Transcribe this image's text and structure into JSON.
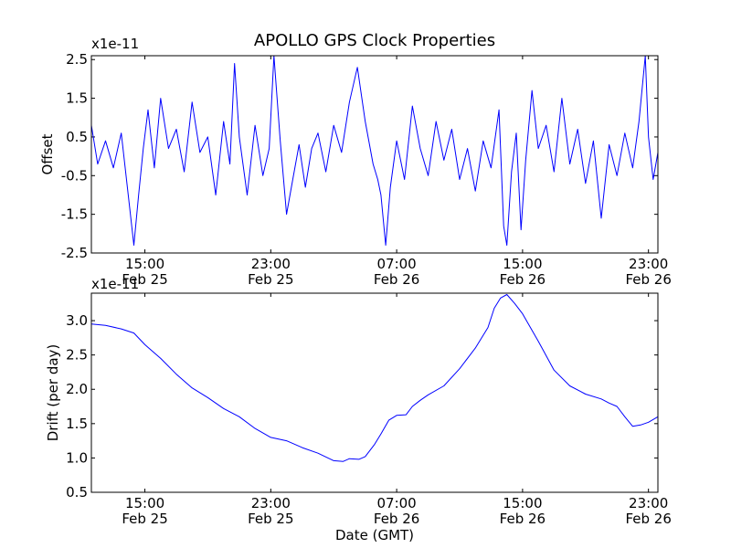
{
  "chart_data": [
    {
      "type": "line",
      "title": "APOLLO GPS Clock Properties",
      "xlabel": "",
      "ylabel": "Offset",
      "y_multiplier_label": "x1e-11",
      "ylim": [
        -2.5,
        2.6
      ],
      "yticks": [
        2.5,
        1.5,
        0.5,
        -0.5,
        -1.5,
        -2.5
      ],
      "ytick_labels": [
        "2.5",
        "1.5",
        "0.5",
        "-0.5",
        "-1.5",
        "-2.5"
      ],
      "xlim_hours": [
        11.6,
        47.6
      ],
      "xticks": [
        {
          "hour": 15,
          "time": "15:00",
          "date": "Feb 25"
        },
        {
          "hour": 23,
          "time": "23:00",
          "date": "Feb 25"
        },
        {
          "hour": 31,
          "time": "07:00",
          "date": "Feb 26"
        },
        {
          "hour": 39,
          "time": "15:00",
          "date": "Feb 26"
        },
        {
          "hour": 47,
          "time": "23:00",
          "date": "Feb 26"
        }
      ],
      "grid": false,
      "color": "#0000ff",
      "series": [
        {
          "x": [
            11.6,
            12.0,
            12.5,
            13.0,
            13.5,
            14.0,
            14.3,
            14.6,
            14.9,
            15.2,
            15.6,
            16.0,
            16.5,
            17.0,
            17.5,
            18.0,
            18.5,
            19.0,
            19.5,
            20.0,
            20.4,
            20.7,
            21.0,
            21.5,
            22.0,
            22.5,
            22.9,
            23.2,
            23.6,
            24.0,
            24.4,
            24.8,
            25.2,
            25.6,
            26.0,
            26.5,
            27.0,
            27.5,
            28.0,
            28.5,
            29.0,
            29.5,
            29.8,
            30.0,
            30.3,
            30.6,
            31.0,
            31.5,
            32.0,
            32.5,
            33.0,
            33.5,
            34.0,
            34.5,
            35.0,
            35.5,
            36.0,
            36.5,
            37.0,
            37.5,
            37.8,
            38.0,
            38.3,
            38.6,
            38.9,
            39.2,
            39.6,
            40.0,
            40.5,
            41.0,
            41.5,
            42.0,
            42.5,
            43.0,
            43.5,
            44.0,
            44.5,
            45.0,
            45.5,
            46.0,
            46.4,
            46.8,
            47.0,
            47.3,
            47.6
          ],
          "y": [
            0.8,
            -0.2,
            0.4,
            -0.3,
            0.6,
            -1.2,
            -2.3,
            -1.0,
            0.2,
            1.2,
            -0.3,
            1.5,
            0.2,
            0.7,
            -0.4,
            1.4,
            0.1,
            0.5,
            -1.0,
            0.9,
            -0.2,
            2.4,
            0.5,
            -1.0,
            0.8,
            -0.5,
            0.2,
            2.6,
            0.4,
            -1.5,
            -0.6,
            0.3,
            -0.8,
            0.2,
            0.6,
            -0.4,
            0.8,
            0.1,
            1.4,
            2.3,
            0.9,
            -0.2,
            -0.6,
            -1.0,
            -2.3,
            -0.8,
            0.4,
            -0.6,
            1.3,
            0.2,
            -0.5,
            0.9,
            -0.1,
            0.7,
            -0.6,
            0.2,
            -0.9,
            0.4,
            -0.3,
            1.2,
            -1.8,
            -2.3,
            -0.4,
            0.6,
            -1.9,
            -0.1,
            1.7,
            0.2,
            0.8,
            -0.4,
            1.5,
            -0.2,
            0.7,
            -0.7,
            0.4,
            -1.6,
            0.3,
            -0.5,
            0.6,
            -0.3,
            0.9,
            2.6,
            0.5,
            -0.6,
            0.1
          ]
        }
      ]
    },
    {
      "type": "line",
      "title": "",
      "xlabel": "Date (GMT)",
      "ylabel": "Drift (per day)",
      "y_multiplier_label": "x1e-11",
      "ylim": [
        0.5,
        3.4
      ],
      "yticks": [
        3.0,
        2.5,
        2.0,
        1.5,
        1.0,
        0.5
      ],
      "ytick_labels": [
        "3.0",
        "2.5",
        "2.0",
        "1.5",
        "1.0",
        "0.5"
      ],
      "xlim_hours": [
        11.6,
        47.6
      ],
      "xticks": [
        {
          "hour": 15,
          "time": "15:00",
          "date": "Feb 25"
        },
        {
          "hour": 23,
          "time": "23:00",
          "date": "Feb 25"
        },
        {
          "hour": 31,
          "time": "07:00",
          "date": "Feb 26"
        },
        {
          "hour": 39,
          "time": "15:00",
          "date": "Feb 26"
        },
        {
          "hour": 47,
          "time": "23:00",
          "date": "Feb 26"
        }
      ],
      "grid": false,
      "color": "#0000ff",
      "series": [
        {
          "x": [
            11.6,
            12.5,
            13.5,
            14.3,
            15.0,
            16.0,
            17.0,
            18.0,
            19.0,
            20.0,
            21.0,
            22.0,
            23.0,
            24.0,
            25.0,
            26.0,
            27.0,
            27.6,
            28.0,
            28.6,
            29.0,
            29.6,
            30.0,
            30.5,
            31.0,
            31.6,
            32.0,
            32.5,
            33.0,
            34.0,
            35.0,
            36.0,
            36.8,
            37.2,
            37.6,
            38.0,
            38.5,
            39.0,
            40.0,
            41.0,
            42.0,
            43.0,
            44.0,
            44.5,
            45.0,
            45.5,
            46.0,
            46.5,
            47.0,
            47.6
          ],
          "y": [
            2.95,
            2.93,
            2.88,
            2.82,
            2.65,
            2.45,
            2.22,
            2.02,
            1.88,
            1.72,
            1.6,
            1.43,
            1.3,
            1.25,
            1.15,
            1.07,
            0.96,
            0.95,
            0.99,
            0.98,
            1.02,
            1.2,
            1.35,
            1.55,
            1.62,
            1.63,
            1.75,
            1.84,
            1.92,
            2.05,
            2.3,
            2.6,
            2.9,
            3.18,
            3.33,
            3.38,
            3.25,
            3.1,
            2.7,
            2.28,
            2.05,
            1.93,
            1.86,
            1.8,
            1.75,
            1.6,
            1.46,
            1.48,
            1.52,
            1.6
          ]
        }
      ]
    }
  ]
}
